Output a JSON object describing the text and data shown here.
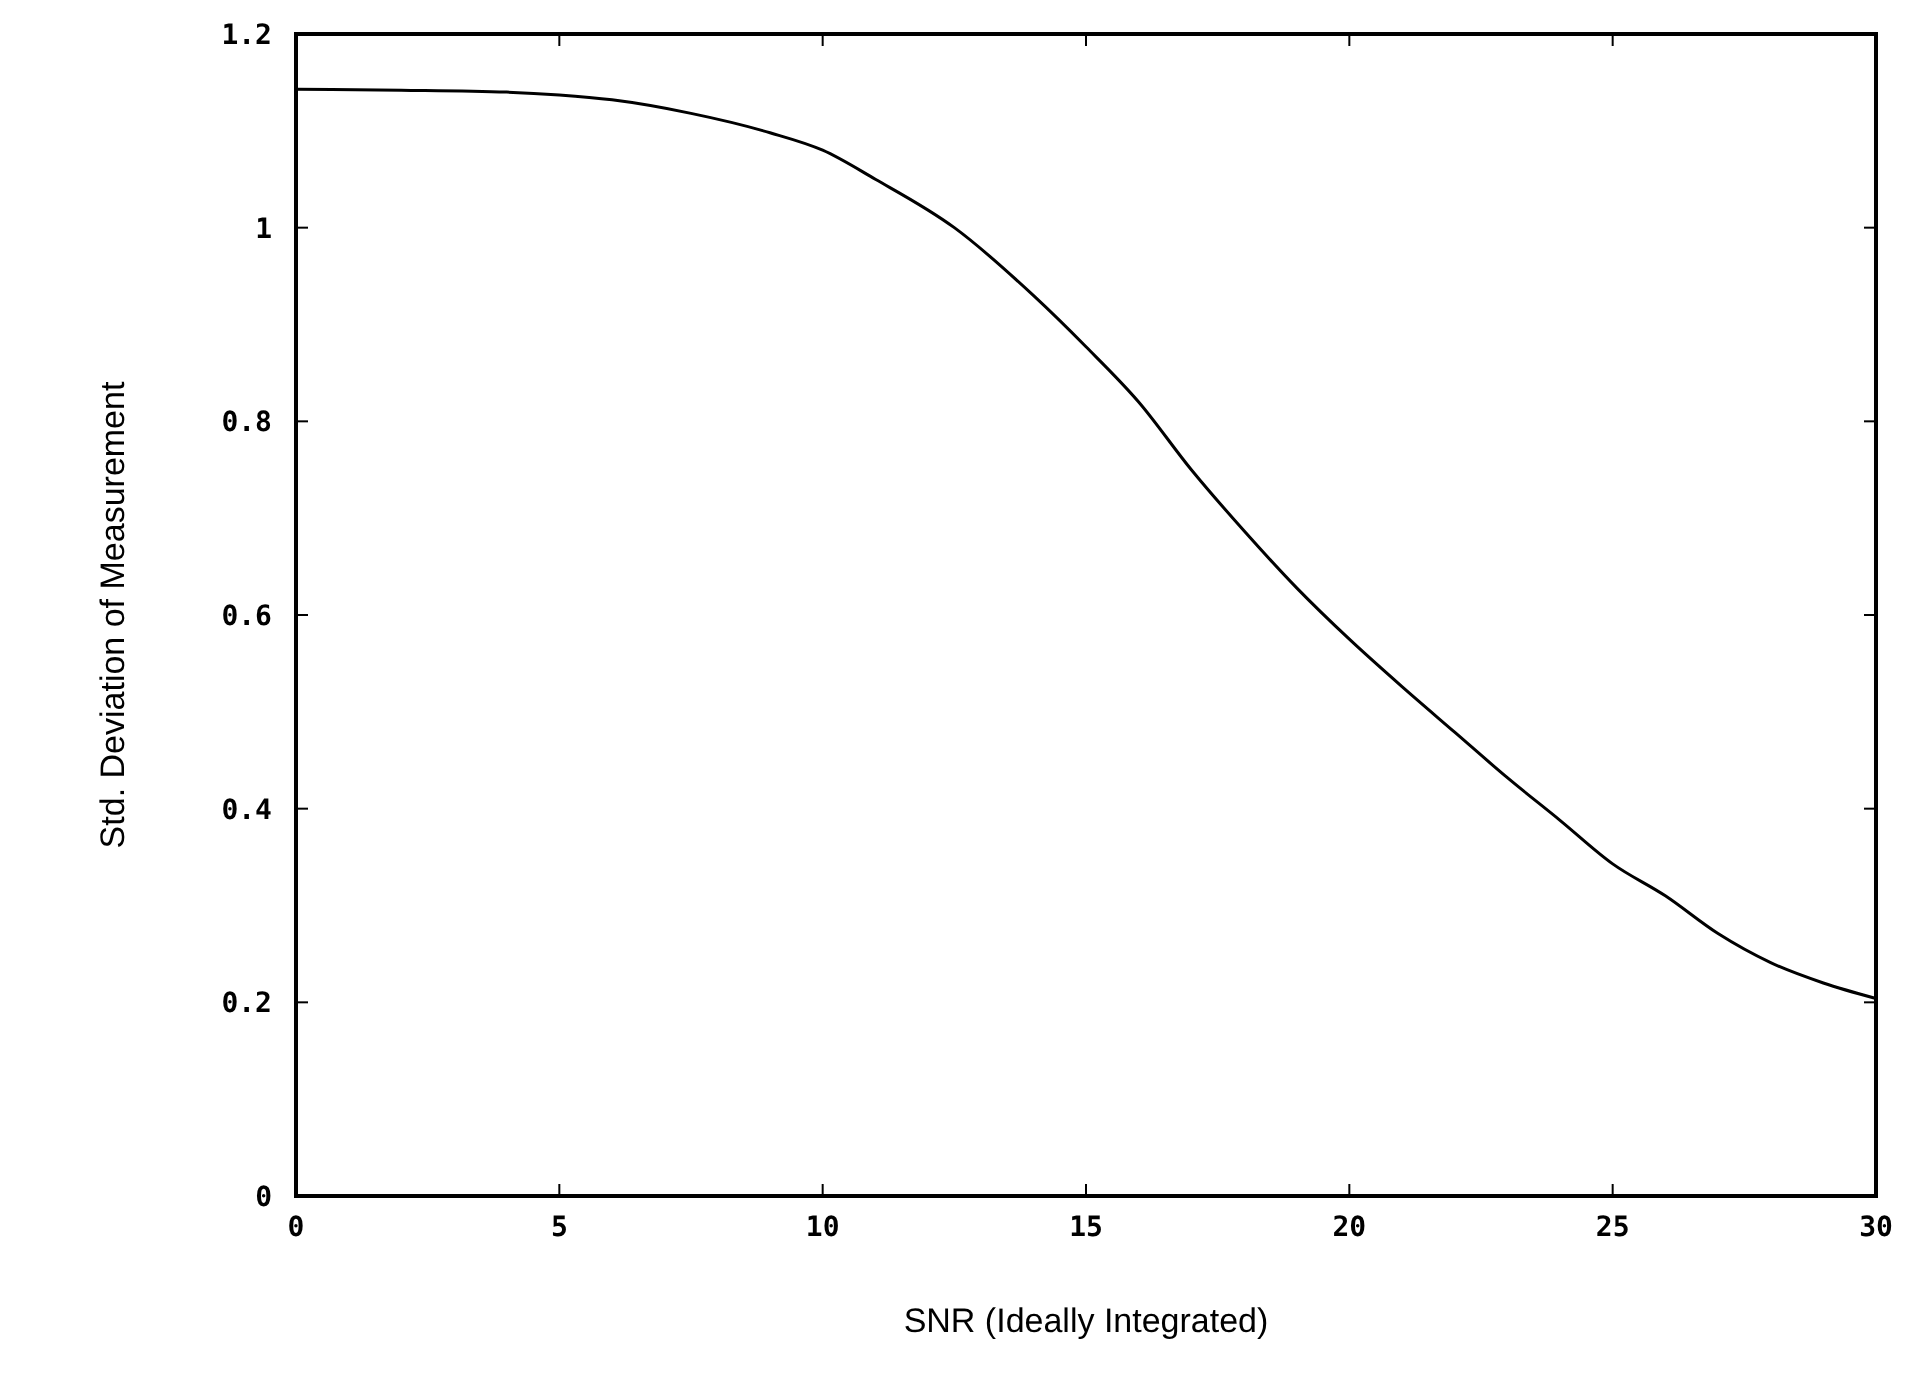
{
  "chart_data": {
    "type": "line",
    "xlabel": "SNR (Ideally Integrated)",
    "ylabel": "Std. Deviation of Measurement",
    "xlim": [
      0,
      30
    ],
    "ylim": [
      0,
      1.2
    ],
    "xticks": [
      {
        "value": 0,
        "label": "0"
      },
      5,
      10,
      15,
      20,
      25,
      30
    ],
    "yticks": [
      {
        "value": 0,
        "label": "0"
      },
      {
        "value": 0.2,
        "label": "0.2"
      },
      {
        "value": 0.4,
        "label": "0.4"
      },
      {
        "value": 0.6,
        "label": "0.6"
      },
      {
        "value": 0.8,
        "label": "0.8"
      },
      1,
      1.2
    ],
    "grid": false,
    "marker": "none",
    "line_style": "solid",
    "series": [
      {
        "color": "#000000",
        "x": [
          0,
          2,
          4,
          5,
          6,
          7.5,
          9,
          10,
          11,
          12.5,
          14,
          15,
          16,
          17,
          18,
          19,
          20,
          21,
          22,
          23,
          24,
          25,
          26,
          27,
          28,
          29,
          30
        ],
        "values": [
          1.143,
          1.142,
          1.14,
          1.137,
          1.132,
          1.118,
          1.098,
          1.08,
          1.05,
          1.0,
          0.93,
          0.877,
          0.82,
          0.75,
          0.687,
          0.628,
          0.575,
          0.526,
          0.479,
          0.432,
          0.388,
          0.343,
          0.31,
          0.271,
          0.241,
          0.22,
          0.204
        ]
      }
    ]
  }
}
